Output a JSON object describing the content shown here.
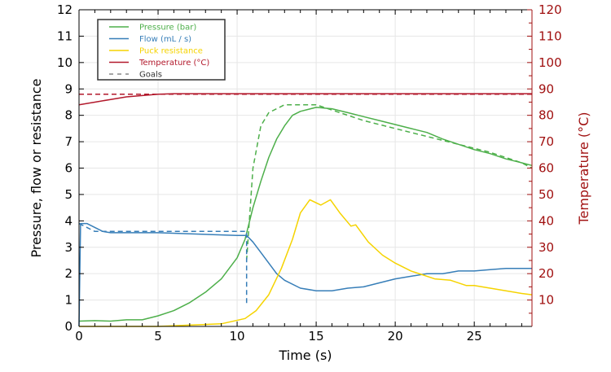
{
  "chart_data": {
    "type": "line",
    "xlabel": "Time (s)",
    "ylabel": "Pressure, flow or resistance",
    "y2label": "Temperature (°C)",
    "xlim": [
      0,
      28.65
    ],
    "ylim": [
      0,
      12
    ],
    "y2lim": [
      0,
      120
    ],
    "xticks": [
      0,
      5,
      10,
      15,
      20,
      25
    ],
    "yticks": [
      0,
      1,
      2,
      3,
      4,
      5,
      6,
      7,
      8,
      9,
      10,
      11,
      12
    ],
    "y2ticks": [
      10,
      20,
      30,
      40,
      50,
      60,
      70,
      80,
      90,
      100,
      110,
      120
    ],
    "grid": true,
    "legend_position": "top-left",
    "series": [
      {
        "name": "Pressure (bar)",
        "color": "#4daf4a",
        "axis": "left",
        "dash": false,
        "x": [
          0,
          1,
          2,
          3,
          4,
          5,
          6,
          7,
          8,
          9,
          10,
          10.5,
          11,
          11.5,
          12,
          12.5,
          13,
          13.5,
          14,
          15,
          16,
          17,
          18,
          19,
          20,
          21,
          22,
          23,
          24,
          25,
          26,
          27,
          28,
          28.65
        ],
        "y": [
          0.2,
          0.22,
          0.2,
          0.25,
          0.25,
          0.4,
          0.6,
          0.9,
          1.3,
          1.8,
          2.6,
          3.3,
          4.5,
          5.5,
          6.4,
          7.1,
          7.6,
          8.0,
          8.15,
          8.3,
          8.25,
          8.1,
          7.95,
          7.8,
          7.65,
          7.5,
          7.35,
          7.1,
          6.9,
          6.7,
          6.55,
          6.35,
          6.2,
          6.1
        ]
      },
      {
        "name": "Flow (mL / s)",
        "color": "#377eb8",
        "axis": "left",
        "dash": false,
        "x": [
          0,
          0.1,
          0.5,
          1,
          1.5,
          2,
          5,
          10,
          10.6,
          11,
          11.5,
          12,
          12.5,
          13,
          14,
          15,
          16,
          17,
          18,
          19,
          20,
          21,
          22,
          23,
          24,
          25,
          26,
          27,
          28.65
        ],
        "y": [
          0,
          3.9,
          3.9,
          3.75,
          3.6,
          3.55,
          3.55,
          3.45,
          3.45,
          3.2,
          2.8,
          2.4,
          2.0,
          1.75,
          1.45,
          1.35,
          1.35,
          1.45,
          1.5,
          1.65,
          1.8,
          1.9,
          2.0,
          2.0,
          2.1,
          2.1,
          2.15,
          2.2,
          2.2
        ]
      },
      {
        "name": "Puck resistance",
        "color": "#f5d300",
        "axis": "left",
        "dash": false,
        "x": [
          0,
          5,
          7,
          9,
          10.5,
          11.2,
          12,
          12.8,
          13.5,
          14,
          14.6,
          15.3,
          15.9,
          16.5,
          17.2,
          17.5,
          18.3,
          19.2,
          20,
          21,
          22.5,
          23.5,
          24.5,
          25,
          26,
          27,
          28,
          28.65
        ],
        "y": [
          0,
          0,
          0.05,
          0.1,
          0.3,
          0.6,
          1.2,
          2.2,
          3.3,
          4.3,
          4.8,
          4.6,
          4.8,
          4.3,
          3.8,
          3.85,
          3.2,
          2.7,
          2.4,
          2.1,
          1.8,
          1.75,
          1.55,
          1.55,
          1.45,
          1.35,
          1.25,
          1.2
        ]
      },
      {
        "name": "Temperature (°C)",
        "color": "#b2182b",
        "axis": "right",
        "dash": false,
        "x": [
          0,
          1,
          2,
          3,
          4,
          5,
          6,
          28.65
        ],
        "y": [
          84,
          85,
          86,
          87,
          87.5,
          88,
          88.2,
          88.2
        ]
      },
      {
        "name": "Goals",
        "color": "#888888",
        "legend_only": true
      },
      {
        "name": "Pressure goal",
        "color": "#4daf4a",
        "axis": "left",
        "dash": true,
        "x": [
          10.6,
          11,
          11.5,
          12,
          13,
          15,
          16,
          18,
          20,
          22,
          24,
          26,
          28,
          28.65
        ],
        "y": [
          2.5,
          6.0,
          7.6,
          8.1,
          8.4,
          8.4,
          8.2,
          7.8,
          7.5,
          7.2,
          6.9,
          6.6,
          6.2,
          6.0
        ]
      },
      {
        "name": "Flow goal",
        "color": "#377eb8",
        "axis": "left",
        "dash": true,
        "x": [
          0,
          1,
          10.6,
          10.6
        ],
        "y": [
          3.9,
          3.6,
          3.6,
          0.8
        ]
      },
      {
        "name": "Temperature goal",
        "color": "#b2182b",
        "axis": "right",
        "dash": true,
        "x": [
          0,
          28.65
        ],
        "y": [
          88,
          88
        ]
      }
    ]
  }
}
